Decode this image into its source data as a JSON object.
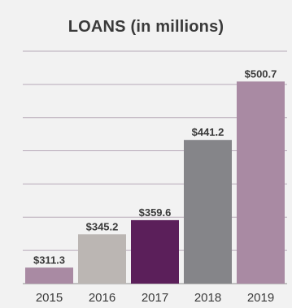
{
  "chart_data": {
    "type": "bar",
    "title": "LOANS (in millions)",
    "xlabel": "",
    "ylabel": "",
    "categories": [
      "2015",
      "2016",
      "2017",
      "2018",
      "2019"
    ],
    "values": [
      311.3,
      345.2,
      359.6,
      441.2,
      500.7
    ],
    "value_labels": [
      "$311.3",
      "$345.2",
      "$359.6",
      "$441.2",
      "$500.7"
    ],
    "bar_colors": [
      "#a98aa3",
      "#bbb6b3",
      "#5b1f5a",
      "#858589",
      "#a98aa3"
    ],
    "ylim": [
      295,
      515
    ],
    "grid": true,
    "gridline_count": 8,
    "gridline_color": "#b7a9b8",
    "legend": "none"
  }
}
